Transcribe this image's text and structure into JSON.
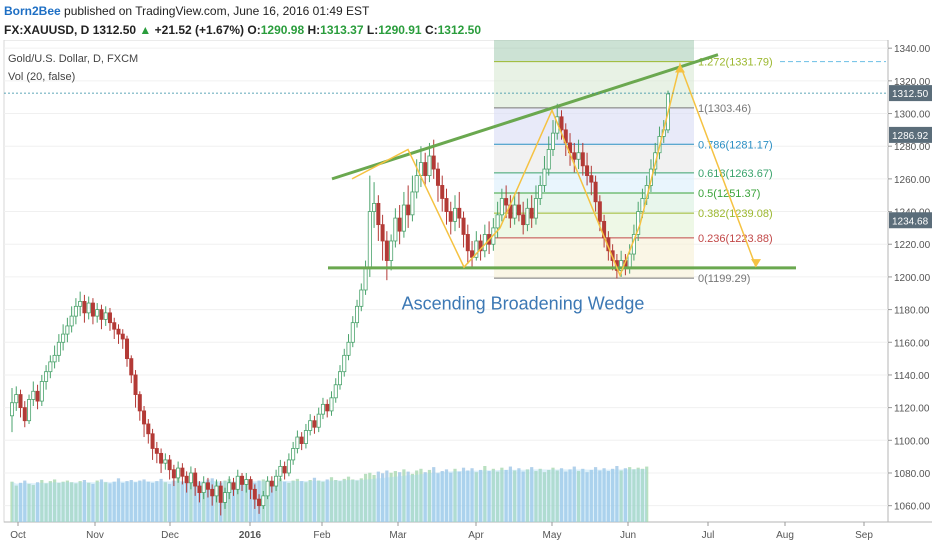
{
  "header": {
    "author": "Born2Bee",
    "published_text": "published on TradingView.com, June 16, 2016 01:49 EST",
    "symbol_line_prefix": "FX:XAUUSD, D",
    "last": "1312.50",
    "up_arrow": "▲",
    "change": "+21.52 (+1.67%)",
    "open_label": "O:",
    "open": "1290.98",
    "high_label": "H:",
    "high": "1313.37",
    "low_label": "L:",
    "low": "1290.91",
    "close_label": "C:",
    "close": "1312.50"
  },
  "legend": {
    "instrument": "Gold/U.S. Dollar, D, FXCM",
    "volume": "Vol (20, false)"
  },
  "colors": {
    "up_candle": "#4aa36c",
    "down_candle": "#b33a36",
    "wedge_line": "#6aa84f",
    "zigzag": "#f5c242",
    "volume_up": "#a8d8b0",
    "volume_down": "#9fc6e6",
    "volume_ma": "#9fd3f2",
    "price_label_bg": "#5b6d7a"
  },
  "chart_data": {
    "type": "candlestick",
    "title": "Gold/U.S. Dollar, D, FXCM",
    "annotation": "Ascending Broadening Wedge",
    "y_axis": {
      "range": [
        1050,
        1345
      ],
      "ticks": [
        "1060.00",
        "1080.00",
        "1100.00",
        "1120.00",
        "1140.00",
        "1160.00",
        "1180.00",
        "1200.00",
        "1220.00",
        "1240.00",
        "1260.00",
        "1280.00",
        "1300.00",
        "1320.00",
        "1340.00"
      ]
    },
    "x_axis": {
      "ticks": [
        "Oct",
        "Nov",
        "Dec",
        "2016",
        "Feb",
        "Mar",
        "Apr",
        "May",
        "Jun",
        "Jul",
        "Aug",
        "Sep"
      ]
    },
    "price_labels": [
      {
        "text": "1312.50",
        "value": 1312.5
      },
      {
        "text": "1286.92",
        "value": 1286.92
      },
      {
        "text": "1234.68",
        "value": 1234.68
      }
    ],
    "fibonacci": [
      {
        "label": "1.272(1331.79)",
        "value": 1331.79,
        "color": "#9cb82f"
      },
      {
        "label": "1(1303.46)",
        "value": 1303.46,
        "color": "#777777"
      },
      {
        "label": "0.786(1281.17)",
        "value": 1281.17,
        "color": "#2b8fc4"
      },
      {
        "label": "0.618(1263.67)",
        "value": 1263.67,
        "color": "#3aa36c"
      },
      {
        "label": "0.5(1251.37)",
        "value": 1251.37,
        "color": "#3aa33a"
      },
      {
        "label": "0.382(1239.08)",
        "value": 1239.08,
        "color": "#9cb82f"
      },
      {
        "label": "0.236(1223.88)",
        "value": 1223.88,
        "color": "#c24848"
      },
      {
        "label": "0(1199.29)",
        "value": 1199.29,
        "color": "#777777"
      }
    ],
    "candles": [
      [
        1115,
        1123,
        1105,
        1132
      ],
      [
        1123,
        1128,
        1118,
        1133
      ],
      [
        1128,
        1120,
        1114,
        1131
      ],
      [
        1120,
        1112,
        1108,
        1124
      ],
      [
        1112,
        1125,
        1110,
        1128
      ],
      [
        1125,
        1130,
        1121,
        1136
      ],
      [
        1130,
        1124,
        1119,
        1134
      ],
      [
        1124,
        1136,
        1121,
        1140
      ],
      [
        1136,
        1142,
        1131,
        1146
      ],
      [
        1142,
        1148,
        1138,
        1152
      ],
      [
        1148,
        1152,
        1144,
        1158
      ],
      [
        1152,
        1160,
        1148,
        1165
      ],
      [
        1160,
        1165,
        1155,
        1171
      ],
      [
        1165,
        1170,
        1160,
        1175
      ],
      [
        1170,
        1176,
        1166,
        1182
      ],
      [
        1176,
        1182,
        1171,
        1187
      ],
      [
        1182,
        1185,
        1176,
        1191
      ],
      [
        1185,
        1178,
        1172,
        1189
      ],
      [
        1178,
        1184,
        1174,
        1188
      ],
      [
        1184,
        1176,
        1171,
        1187
      ],
      [
        1176,
        1180,
        1172,
        1184
      ],
      [
        1180,
        1174,
        1168,
        1183
      ],
      [
        1174,
        1178,
        1170,
        1182
      ],
      [
        1178,
        1172,
        1167,
        1181
      ],
      [
        1172,
        1168,
        1162,
        1175
      ],
      [
        1168,
        1165,
        1159,
        1171
      ],
      [
        1165,
        1162,
        1156,
        1168
      ],
      [
        1162,
        1150,
        1145,
        1164
      ],
      [
        1150,
        1140,
        1135,
        1152
      ],
      [
        1140,
        1128,
        1120,
        1143
      ],
      [
        1128,
        1118,
        1112,
        1130
      ],
      [
        1118,
        1110,
        1102,
        1121
      ],
      [
        1110,
        1104,
        1098,
        1113
      ],
      [
        1104,
        1095,
        1088,
        1107
      ],
      [
        1095,
        1092,
        1086,
        1099
      ],
      [
        1092,
        1086,
        1080,
        1095
      ],
      [
        1086,
        1088,
        1082,
        1092
      ],
      [
        1088,
        1082,
        1076,
        1091
      ],
      [
        1082,
        1077,
        1072,
        1085
      ],
      [
        1077,
        1083,
        1074,
        1087
      ],
      [
        1083,
        1078,
        1073,
        1086
      ],
      [
        1078,
        1074,
        1068,
        1081
      ],
      [
        1074,
        1080,
        1070,
        1084
      ],
      [
        1080,
        1072,
        1066,
        1083
      ],
      [
        1072,
        1068,
        1062,
        1075
      ],
      [
        1068,
        1074,
        1064,
        1078
      ],
      [
        1074,
        1070,
        1065,
        1077
      ],
      [
        1070,
        1066,
        1060,
        1073
      ],
      [
        1066,
        1072,
        1062,
        1076
      ],
      [
        1072,
        1062,
        1054,
        1075
      ],
      [
        1062,
        1068,
        1058,
        1071
      ],
      [
        1068,
        1074,
        1064,
        1078
      ],
      [
        1074,
        1070,
        1066,
        1077
      ],
      [
        1070,
        1078,
        1067,
        1082
      ],
      [
        1078,
        1073,
        1069,
        1080
      ],
      [
        1073,
        1076,
        1068,
        1080
      ],
      [
        1076,
        1070,
        1064,
        1078
      ],
      [
        1070,
        1064,
        1058,
        1073
      ],
      [
        1064,
        1060,
        1055,
        1067
      ],
      [
        1060,
        1066,
        1058,
        1069
      ],
      [
        1066,
        1075,
        1064,
        1078
      ],
      [
        1075,
        1072,
        1068,
        1078
      ],
      [
        1072,
        1078,
        1069,
        1082
      ],
      [
        1078,
        1084,
        1075,
        1088
      ],
      [
        1084,
        1080,
        1076,
        1087
      ],
      [
        1080,
        1088,
        1078,
        1092
      ],
      [
        1088,
        1095,
        1085,
        1099
      ],
      [
        1095,
        1102,
        1092,
        1106
      ],
      [
        1102,
        1098,
        1094,
        1105
      ],
      [
        1098,
        1106,
        1095,
        1110
      ],
      [
        1106,
        1112,
        1103,
        1116
      ],
      [
        1112,
        1108,
        1104,
        1115
      ],
      [
        1108,
        1116,
        1105,
        1120
      ],
      [
        1116,
        1122,
        1113,
        1126
      ],
      [
        1122,
        1118,
        1114,
        1125
      ],
      [
        1118,
        1126,
        1115,
        1130
      ],
      [
        1126,
        1134,
        1123,
        1138
      ],
      [
        1134,
        1142,
        1131,
        1146
      ],
      [
        1142,
        1152,
        1139,
        1156
      ],
      [
        1152,
        1160,
        1149,
        1165
      ],
      [
        1160,
        1172,
        1157,
        1176
      ],
      [
        1172,
        1182,
        1169,
        1186
      ],
      [
        1182,
        1192,
        1179,
        1196
      ],
      [
        1192,
        1205,
        1189,
        1210
      ],
      [
        1205,
        1240,
        1200,
        1262
      ],
      [
        1240,
        1245,
        1230,
        1258
      ],
      [
        1245,
        1232,
        1222,
        1250
      ],
      [
        1232,
        1222,
        1210,
        1238
      ],
      [
        1222,
        1210,
        1198,
        1228
      ],
      [
        1210,
        1222,
        1204,
        1226
      ],
      [
        1222,
        1236,
        1218,
        1242
      ],
      [
        1236,
        1228,
        1220,
        1244
      ],
      [
        1228,
        1244,
        1224,
        1252
      ],
      [
        1244,
        1238,
        1230,
        1256
      ],
      [
        1238,
        1252,
        1234,
        1262
      ],
      [
        1252,
        1262,
        1248,
        1272
      ],
      [
        1262,
        1270,
        1255,
        1280
      ],
      [
        1270,
        1262,
        1256,
        1276
      ],
      [
        1262,
        1274,
        1258,
        1282
      ],
      [
        1274,
        1266,
        1260,
        1284
      ],
      [
        1266,
        1256,
        1246,
        1270
      ],
      [
        1256,
        1248,
        1240,
        1262
      ],
      [
        1248,
        1240,
        1232,
        1254
      ],
      [
        1240,
        1234,
        1226,
        1246
      ],
      [
        1234,
        1242,
        1228,
        1250
      ],
      [
        1242,
        1236,
        1230,
        1252
      ],
      [
        1236,
        1226,
        1218,
        1240
      ],
      [
        1226,
        1216,
        1208,
        1232
      ],
      [
        1216,
        1212,
        1206,
        1222
      ],
      [
        1212,
        1222,
        1210,
        1228
      ],
      [
        1222,
        1216,
        1210,
        1226
      ],
      [
        1216,
        1226,
        1212,
        1232
      ],
      [
        1226,
        1220,
        1214,
        1234
      ],
      [
        1220,
        1230,
        1216,
        1236
      ],
      [
        1230,
        1238,
        1224,
        1246
      ],
      [
        1238,
        1248,
        1234,
        1254
      ],
      [
        1248,
        1244,
        1236,
        1256
      ],
      [
        1244,
        1236,
        1230,
        1250
      ],
      [
        1236,
        1244,
        1232,
        1250
      ],
      [
        1244,
        1238,
        1234,
        1252
      ],
      [
        1238,
        1232,
        1226,
        1246
      ],
      [
        1232,
        1242,
        1228,
        1248
      ],
      [
        1242,
        1236,
        1230,
        1250
      ],
      [
        1236,
        1248,
        1232,
        1256
      ],
      [
        1248,
        1256,
        1244,
        1262
      ],
      [
        1256,
        1266,
        1252,
        1274
      ],
      [
        1266,
        1278,
        1262,
        1286
      ],
      [
        1278,
        1288,
        1274,
        1296
      ],
      [
        1288,
        1298,
        1284,
        1306
      ],
      [
        1298,
        1290,
        1284,
        1302
      ],
      [
        1290,
        1282,
        1274,
        1294
      ],
      [
        1282,
        1276,
        1268,
        1288
      ],
      [
        1276,
        1272,
        1264,
        1282
      ],
      [
        1272,
        1276,
        1266,
        1284
      ],
      [
        1276,
        1268,
        1262,
        1282
      ],
      [
        1268,
        1262,
        1256,
        1276
      ],
      [
        1262,
        1258,
        1250,
        1268
      ],
      [
        1258,
        1246,
        1240,
        1262
      ],
      [
        1246,
        1234,
        1228,
        1250
      ],
      [
        1234,
        1224,
        1218,
        1238
      ],
      [
        1224,
        1216,
        1210,
        1228
      ],
      [
        1216,
        1210,
        1204,
        1220
      ],
      [
        1210,
        1204,
        1199,
        1214
      ],
      [
        1204,
        1210,
        1200,
        1216
      ],
      [
        1210,
        1206,
        1201,
        1214
      ],
      [
        1206,
        1214,
        1202,
        1220
      ],
      [
        1214,
        1226,
        1210,
        1232
      ],
      [
        1226,
        1240,
        1222,
        1246
      ],
      [
        1240,
        1248,
        1236,
        1254
      ],
      [
        1248,
        1256,
        1244,
        1262
      ],
      [
        1256,
        1266,
        1252,
        1272
      ],
      [
        1266,
        1276,
        1262,
        1282
      ],
      [
        1276,
        1286,
        1272,
        1292
      ],
      [
        1286,
        1290,
        1282,
        1296
      ],
      [
        1290,
        1312,
        1288,
        1314
      ]
    ],
    "volume": [
      72,
      65,
      70,
      74,
      68,
      66,
      71,
      75,
      69,
      73,
      76,
      70,
      72,
      74,
      71,
      69,
      73,
      75,
      70,
      68,
      74,
      76,
      71,
      69,
      72,
      78,
      70,
      73,
      75,
      71,
      74,
      76,
      72,
      70,
      73,
      77,
      71,
      68,
      74,
      80,
      72,
      70,
      73,
      75,
      71,
      69,
      76,
      78,
      72,
      70,
      74,
      77,
      71,
      69,
      73,
      75,
      72,
      70,
      74,
      76,
      73,
      71,
      75,
      78,
      72,
      70,
      74,
      77,
      73,
      71,
      75,
      79,
      74,
      72,
      76,
      80,
      75,
      73,
      77,
      81,
      76,
      74,
      78,
      86,
      88,
      84,
      90,
      87,
      92,
      88,
      91,
      89,
      94,
      90,
      86,
      92,
      95,
      89,
      93,
      98,
      87,
      91,
      94,
      88,
      95,
      90,
      97,
      92,
      96,
      89,
      93,
      100,
      91,
      95,
      90,
      97,
      93,
      99,
      92,
      96,
      90,
      94,
      98,
      91,
      95,
      89,
      93,
      97,
      92,
      96,
      90,
      94,
      99,
      91,
      95,
      89,
      93,
      98,
      92,
      96,
      91,
      95,
      100,
      92,
      96,
      98,
      94,
      97,
      95,
      99
    ]
  }
}
